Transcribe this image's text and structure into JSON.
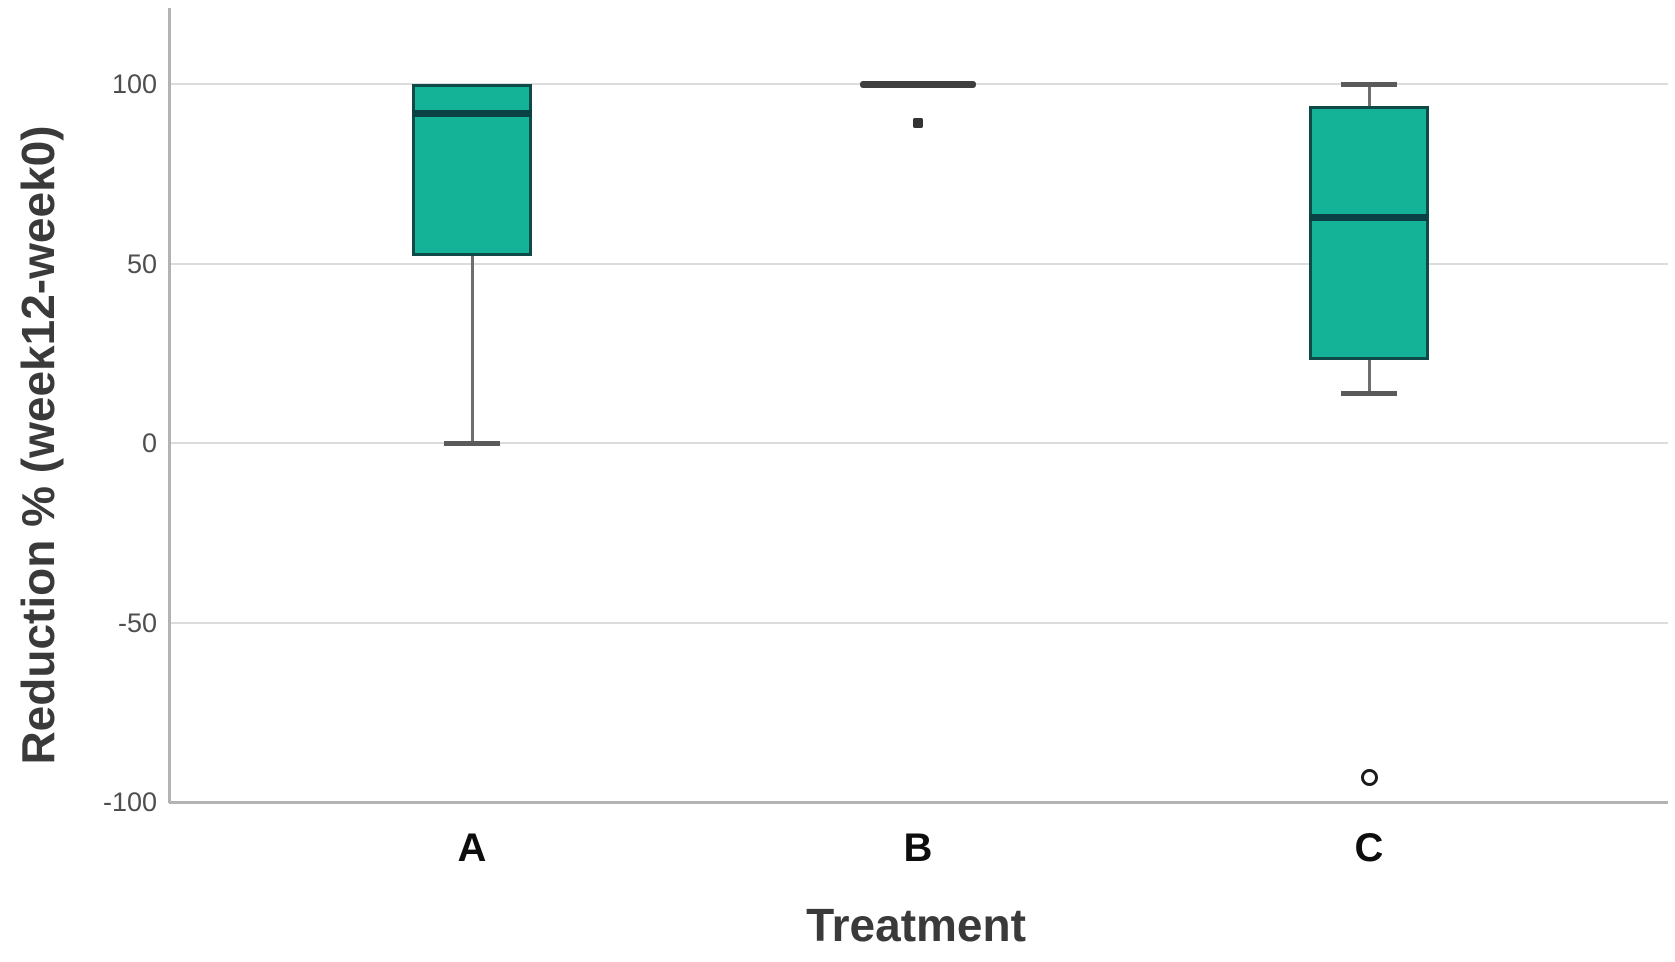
{
  "chart_data": {
    "type": "boxplot",
    "title": "",
    "xlabel": "Treatment",
    "ylabel": "Reduction % (week12-week0)",
    "ylim": [
      -100,
      121
    ],
    "yticks": [
      {
        "value": 100,
        "label": "100"
      },
      {
        "value": 50,
        "label": "50"
      },
      {
        "value": 0,
        "label": "0"
      },
      {
        "value": -50,
        "label": "-50"
      },
      {
        "value": -100,
        "label": "-100"
      }
    ],
    "grid": "horizontal",
    "legend": "none",
    "categories": [
      "A",
      "B",
      "C"
    ],
    "series": [
      {
        "name": "A",
        "q1": 52,
        "median": 92,
        "q3": 100,
        "whisker_low": 0,
        "whisker_high": 100,
        "outliers": []
      },
      {
        "name": "B",
        "q1": 100,
        "median": 100,
        "q3": 100,
        "whisker_low": 100,
        "whisker_high": 100,
        "outliers": [
          {
            "value": 89,
            "style": "dot"
          }
        ]
      },
      {
        "name": "C",
        "q1": 23,
        "median": 63,
        "q3": 94,
        "whisker_low": 14,
        "whisker_high": 100,
        "outliers": [
          {
            "value": -93,
            "style": "circle"
          }
        ]
      }
    ],
    "colors": {
      "box_fill": "#14b297",
      "box_border": "#0e4a48",
      "median": "#0b4045",
      "collapsed_box": "#3f3f3f",
      "whisker": "#6e6e6e",
      "whisker_cap": "#5a5a5a",
      "outlier": "#1a1a1a",
      "gridline": "#dcdcdc",
      "axis": "#b3b3b3",
      "tick_label": "#4f4f4f",
      "category_label": "#0d0d0d",
      "axis_title": "#3a3a3a"
    }
  }
}
